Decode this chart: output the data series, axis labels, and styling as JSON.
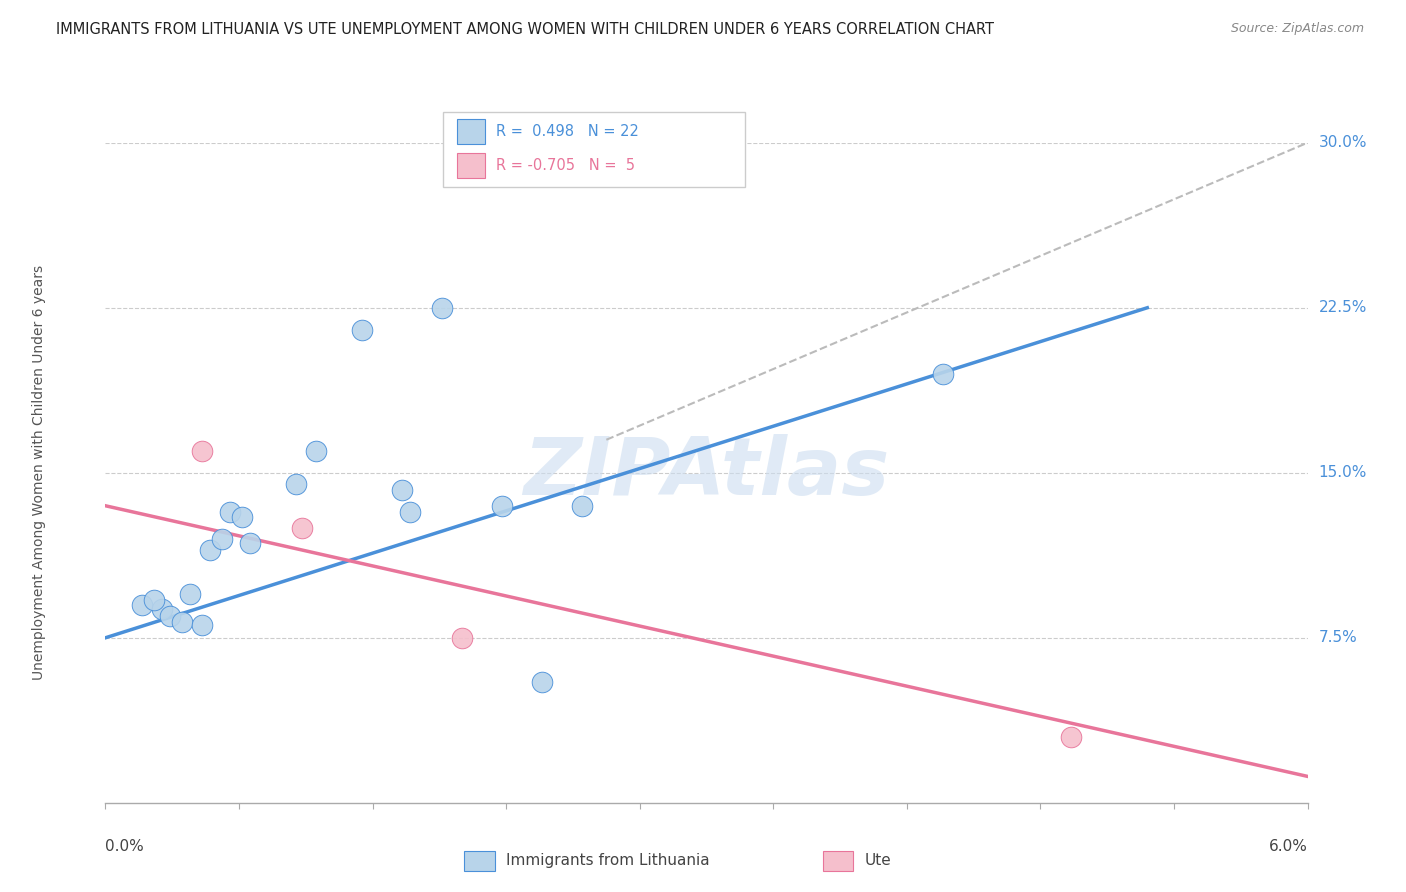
{
  "title": "IMMIGRANTS FROM LITHUANIA VS UTE UNEMPLOYMENT AMONG WOMEN WITH CHILDREN UNDER 6 YEARS CORRELATION CHART",
  "source": "Source: ZipAtlas.com",
  "ylabel": "Unemployment Among Women with Children Under 6 years",
  "xmin": 0.0,
  "xmax": 6.0,
  "ymin": 0.0,
  "ymax": 30.0,
  "yticks": [
    7.5,
    15.0,
    22.5,
    30.0
  ],
  "watermark": "ZIPAtlas",
  "blue_color": "#b8d4ea",
  "pink_color": "#f5bfcc",
  "blue_line_color": "#4a90d9",
  "pink_line_color": "#e8759a",
  "dashed_line_color": "#bbbbbb",
  "blue_scatter": [
    [
      0.18,
      9.0
    ],
    [
      0.28,
      8.8
    ],
    [
      0.32,
      8.5
    ],
    [
      0.38,
      8.2
    ],
    [
      0.42,
      9.5
    ],
    [
      0.48,
      8.1
    ],
    [
      0.52,
      11.5
    ],
    [
      0.58,
      12.0
    ],
    [
      0.62,
      13.2
    ],
    [
      0.68,
      13.0
    ],
    [
      0.72,
      11.8
    ],
    [
      0.95,
      14.5
    ],
    [
      1.05,
      16.0
    ],
    [
      1.28,
      21.5
    ],
    [
      1.48,
      14.2
    ],
    [
      1.52,
      13.2
    ],
    [
      1.68,
      22.5
    ],
    [
      1.98,
      13.5
    ],
    [
      2.18,
      5.5
    ],
    [
      2.38,
      13.5
    ],
    [
      4.18,
      19.5
    ],
    [
      0.24,
      9.2
    ]
  ],
  "pink_scatter": [
    [
      0.48,
      16.0
    ],
    [
      0.98,
      12.5
    ],
    [
      1.78,
      7.5
    ],
    [
      4.82,
      3.0
    ]
  ],
  "blue_line_pts": [
    [
      0.0,
      7.5
    ],
    [
      5.2,
      22.5
    ]
  ],
  "pink_line_pts": [
    [
      0.0,
      13.5
    ],
    [
      6.0,
      1.2
    ]
  ],
  "dashed_line_pts": [
    [
      2.5,
      16.5
    ],
    [
      6.0,
      30.0
    ]
  ]
}
